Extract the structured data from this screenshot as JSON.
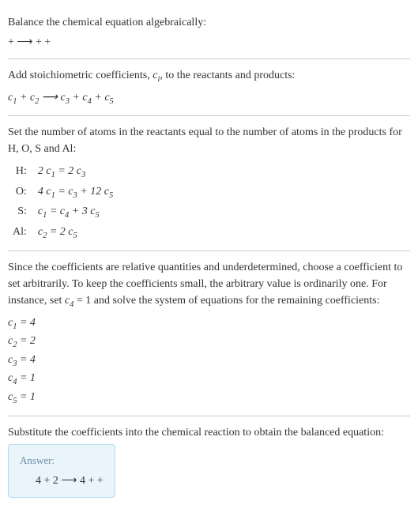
{
  "intro": {
    "line1": "Balance the chemical equation algebraically:",
    "line2": " +  ⟶  + + "
  },
  "step1": {
    "text": "Add stoichiometric coefficients, ",
    "ci": "c",
    "ci_sub": "i",
    "text2": ", to the reactants and products:",
    "reaction_parts": {
      "c1": "c",
      "s1": "1",
      "sp1": " + ",
      "c2": "c",
      "s2": "2",
      "arr": " ⟶ ",
      "c3": "c",
      "s3": "3",
      "sp2": " + ",
      "c4": "c",
      "s4": "4",
      "sp3": " + ",
      "c5": "c",
      "s5": "5"
    }
  },
  "step2": {
    "text": "Set the number of atoms in the reactants equal to the number of atoms in the products for H, O, S and Al:",
    "rows": [
      {
        "label": "H:",
        "eq_l": "2 c",
        "eq_ls": "1",
        "eq_m": " = 2 c",
        "eq_ms": "3",
        "eq_r": "",
        "eq_rs": ""
      },
      {
        "label": "O:",
        "eq_l": "4 c",
        "eq_ls": "1",
        "eq_m": " = c",
        "eq_ms": "3",
        "eq_r": " + 12 c",
        "eq_rs": "5"
      },
      {
        "label": "S:",
        "eq_l": "c",
        "eq_ls": "1",
        "eq_m": " = c",
        "eq_ms": "4",
        "eq_r": " + 3 c",
        "eq_rs": "5"
      },
      {
        "label": "Al:",
        "eq_l": "c",
        "eq_ls": "2",
        "eq_m": " = 2 c",
        "eq_ms": "5",
        "eq_r": "",
        "eq_rs": ""
      }
    ]
  },
  "step3": {
    "text_a": "Since the coefficients are relative quantities and underdetermined, choose a coefficient to set arbitrarily. To keep the coefficients small, the arbitrary value is ordinarily one. For instance, set ",
    "c4": "c",
    "c4s": "4",
    "text_b": " = 1 and solve the system of equations for the remaining coefficients:",
    "coeffs": [
      {
        "c": "c",
        "s": "1",
        "v": " = 4"
      },
      {
        "c": "c",
        "s": "2",
        "v": " = 2"
      },
      {
        "c": "c",
        "s": "3",
        "v": " = 4"
      },
      {
        "c": "c",
        "s": "4",
        "v": " = 1"
      },
      {
        "c": "c",
        "s": "5",
        "v": " = 1"
      }
    ]
  },
  "step4": {
    "text": "Substitute the coefficients into the chemical reaction to obtain the balanced equation:"
  },
  "answer": {
    "label": "Answer:",
    "eq": "4  + 2  ⟶ 4  +  + "
  }
}
